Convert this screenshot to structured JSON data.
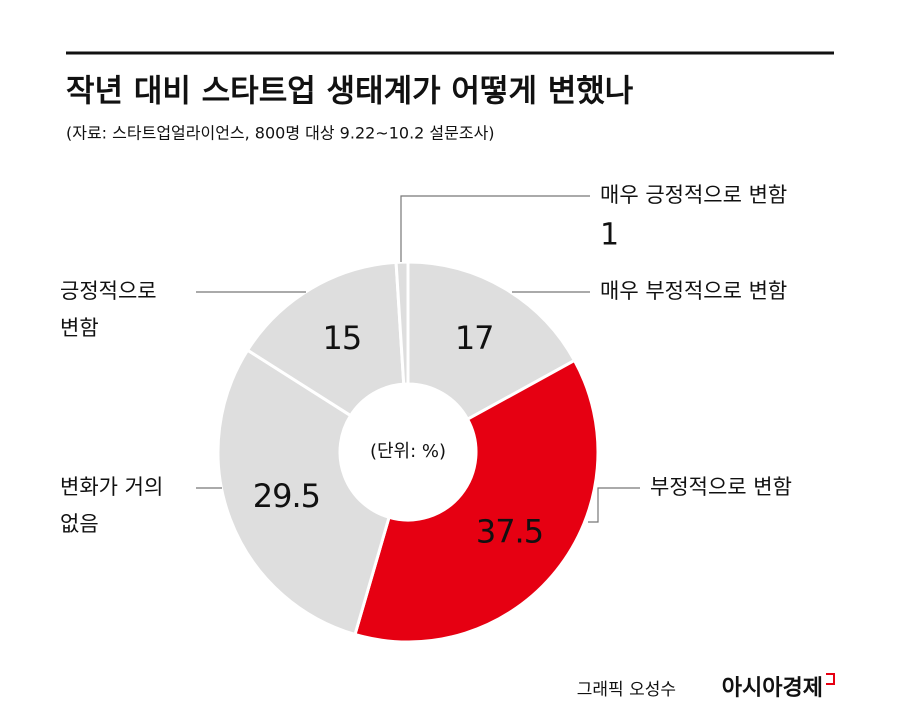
{
  "chart_data": {
    "type": "donut",
    "title": "작년 대비 스타트업 생태계가 어떻게 변했나",
    "subtitle": "(자료: 스타트업얼라이언스, 800명 대상 9.22~10.2 설문조사)",
    "center_label": "(단위: %)",
    "categories": [
      "매우 부정적으로 변함",
      "부정적으로 변함",
      "변화가 거의 없음",
      "긍정적으로 변함",
      "매우 긍정적으로 변함"
    ],
    "values": [
      17,
      37.5,
      29.5,
      15,
      1
    ],
    "colors": [
      "#dedede",
      "#e60012",
      "#dedede",
      "#dedede",
      "#dedede"
    ],
    "label_colors": [
      "#111111",
      "#ffffff",
      "#111111",
      "#111111",
      "#111111"
    ],
    "credit": "그래픽 오성수",
    "publisher": "아시아경제"
  }
}
